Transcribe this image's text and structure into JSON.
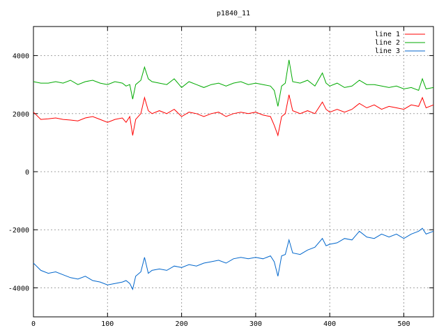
{
  "chart_data": {
    "type": "line",
    "title": "p1840_11",
    "xlabel": "",
    "ylabel": "",
    "xlim": [
      0,
      540
    ],
    "ylim": [
      -5000,
      5000
    ],
    "x_ticks": [
      0,
      100,
      200,
      300,
      400,
      500
    ],
    "y_ticks": [
      -4000,
      -2000,
      0,
      2000,
      4000
    ],
    "grid": true,
    "legend_position": "top-right",
    "x": [
      0,
      10,
      20,
      30,
      40,
      50,
      60,
      70,
      80,
      90,
      100,
      110,
      120,
      125,
      130,
      134,
      138,
      145,
      150,
      155,
      160,
      170,
      180,
      190,
      200,
      210,
      220,
      230,
      240,
      250,
      260,
      270,
      280,
      290,
      300,
      310,
      320,
      325,
      330,
      335,
      340,
      345,
      350,
      360,
      370,
      380,
      390,
      395,
      400,
      410,
      420,
      430,
      440,
      450,
      460,
      470,
      480,
      490,
      500,
      510,
      520,
      525,
      530,
      540
    ],
    "series": [
      {
        "name": "line 1",
        "color": "#ff0000",
        "values": [
          2050,
          1800,
          1820,
          1850,
          1800,
          1780,
          1750,
          1850,
          1900,
          1800,
          1700,
          1800,
          1850,
          1700,
          1900,
          1250,
          1800,
          2000,
          2550,
          2100,
          2000,
          2100,
          2000,
          2150,
          1900,
          2050,
          2000,
          1900,
          2000,
          2050,
          1900,
          2000,
          2050,
          2000,
          2050,
          1950,
          1900,
          1600,
          1250,
          1900,
          2000,
          2650,
          2100,
          2000,
          2100,
          2000,
          2400,
          2150,
          2050,
          2150,
          2050,
          2150,
          2350,
          2200,
          2300,
          2150,
          2250,
          2200,
          2150,
          2300,
          2250,
          2550,
          2200,
          2300
        ]
      },
      {
        "name": "line 2",
        "color": "#00aa00",
        "values": [
          3100,
          3050,
          3050,
          3100,
          3050,
          3150,
          3000,
          3100,
          3150,
          3050,
          3000,
          3100,
          3050,
          2950,
          3000,
          2500,
          3000,
          3150,
          3600,
          3200,
          3100,
          3050,
          3000,
          3200,
          2900,
          3100,
          3000,
          2900,
          3000,
          3050,
          2950,
          3050,
          3100,
          3000,
          3050,
          3000,
          2950,
          2800,
          2250,
          2950,
          3050,
          3850,
          3100,
          3050,
          3150,
          2950,
          3400,
          3050,
          2950,
          3050,
          2900,
          2950,
          3150,
          3000,
          3000,
          2950,
          2900,
          2950,
          2850,
          2900,
          2800,
          3200,
          2850,
          2900
        ]
      },
      {
        "name": "line 3",
        "color": "#0066cc",
        "values": [
          -3150,
          -3400,
          -3500,
          -3450,
          -3550,
          -3650,
          -3700,
          -3600,
          -3750,
          -3800,
          -3900,
          -3850,
          -3800,
          -3750,
          -3850,
          -4050,
          -3600,
          -3450,
          -2950,
          -3500,
          -3400,
          -3350,
          -3400,
          -3250,
          -3300,
          -3200,
          -3250,
          -3150,
          -3100,
          -3050,
          -3150,
          -3000,
          -2950,
          -3000,
          -2950,
          -3000,
          -2900,
          -3100,
          -3600,
          -2900,
          -2850,
          -2350,
          -2800,
          -2850,
          -2700,
          -2600,
          -2300,
          -2550,
          -2500,
          -2450,
          -2300,
          -2350,
          -2050,
          -2250,
          -2300,
          -2150,
          -2250,
          -2150,
          -2300,
          -2150,
          -2050,
          -1950,
          -2150,
          -2050
        ]
      }
    ]
  }
}
